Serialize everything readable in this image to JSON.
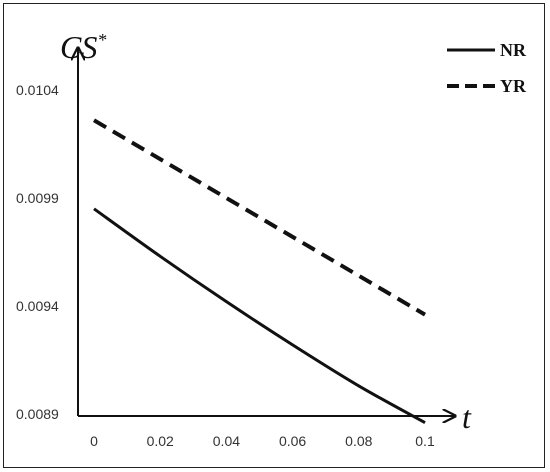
{
  "chart_data": {
    "type": "line",
    "title": "",
    "xlabel": "t",
    "ylabel": "CS",
    "ylabel_superscript": "*",
    "xlim": [
      0,
      0.1
    ],
    "ylim": [
      0.0089,
      0.0104
    ],
    "x_ticks": [
      "0",
      "0.02",
      "0.04",
      "0.06",
      "0.08",
      "0.1"
    ],
    "y_ticks": [
      "0.0104",
      "0.0099",
      "0.0094",
      "0.0089"
    ],
    "legend_position": "top-right",
    "grid": false,
    "series": [
      {
        "name": "NR",
        "style": "solid",
        "x": [
          0,
          0.02,
          0.04,
          0.06,
          0.08,
          0.1
        ],
        "values": [
          0.00985,
          0.00963,
          0.00942,
          0.00922,
          0.00903,
          0.00886
        ]
      },
      {
        "name": "YR",
        "style": "dashed",
        "x": [
          0,
          0.02,
          0.04,
          0.06,
          0.08,
          0.1
        ],
        "values": [
          0.01026,
          0.01008,
          0.0099,
          0.00972,
          0.00954,
          0.00936
        ]
      }
    ]
  }
}
